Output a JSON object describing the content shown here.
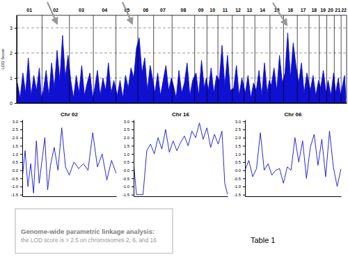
{
  "chart_data": [
    {
      "type": "area",
      "y_label": "LOD Score",
      "color": "#1010d0",
      "x": [
        1,
        5,
        9,
        13,
        17,
        21,
        25,
        29,
        33,
        36,
        39,
        43,
        47,
        51,
        55,
        59,
        63,
        67,
        71,
        75,
        79,
        83,
        87,
        91,
        95,
        99,
        103,
        107,
        111,
        114,
        118,
        122,
        126,
        130,
        134,
        138,
        142,
        147,
        151,
        155,
        159,
        163,
        167,
        171,
        175,
        179,
        183,
        187,
        191,
        195,
        199,
        202,
        206,
        210,
        214,
        218,
        222,
        226,
        229,
        233,
        237,
        241,
        245,
        249,
        253,
        257,
        262,
        266,
        270,
        274,
        277,
        280,
        284,
        288,
        292,
        296,
        300,
        304,
        308,
        312,
        317,
        321,
        325,
        329,
        334,
        338,
        342,
        346,
        350,
        354,
        358,
        362,
        366,
        369,
        372,
        376,
        380,
        384,
        388,
        392,
        396,
        400,
        404,
        408,
        412,
        416,
        420,
        424,
        429,
        433,
        437,
        441,
        444,
        448,
        452,
        455,
        459,
        463,
        466,
        470,
        473,
        476,
        479,
        481
      ],
      "values": [
        0.8,
        0.2,
        1.2,
        0.4,
        1.8,
        0.3,
        1.1,
        0.5,
        1.4,
        0.2,
        0.5,
        1.3,
        0.3,
        1.6,
        0.6,
        2.1,
        0.9,
        2.7,
        1.0,
        1.9,
        0.9,
        0.2,
        1.1,
        0.4,
        1.5,
        0.3,
        0.8,
        1.2,
        0.2,
        0.6,
        1.3,
        0.3,
        1.0,
        0.5,
        1.6,
        0.4,
        0.9,
        0.3,
        0.9,
        0.2,
        1.1,
        0.6,
        1.4,
        1.0,
        2.2,
        2.6,
        1.2,
        1.8,
        0.5,
        1.5,
        0.9,
        0.4,
        1.2,
        0.3,
        0.9,
        1.5,
        0.5,
        1.0,
        0.7,
        0.2,
        1.3,
        0.4,
        0.8,
        1.6,
        0.3,
        0.9,
        1.2,
        0.3,
        1.7,
        0.6,
        1.0,
        0.5,
        1.4,
        0.4,
        1.1,
        0.9,
        2.3,
        0.7,
        1.9,
        0.5,
        0.6,
        1.5,
        0.3,
        1.0,
        0.4,
        1.1,
        0.2,
        0.8,
        0.5,
        1.3,
        0.3,
        1.6,
        0.4,
        0.9,
        0.7,
        1.4,
        0.5,
        1.9,
        0.8,
        1.2,
        2.8,
        1.0,
        2.4,
        1.5,
        0.8,
        1.6,
        0.4,
        1.2,
        0.5,
        1.1,
        0.3,
        0.9,
        0.6,
        1.3,
        0.4,
        0.9,
        0.3,
        1.2,
        0.4,
        1.0,
        0.3,
        0.7,
        1.1,
        0.2
      ],
      "xlim": [
        0,
        482
      ],
      "ylim": [
        0,
        3.5
      ],
      "yticks": [
        0,
        1,
        2,
        3
      ],
      "grid": true,
      "tick_labels": "y",
      "chromosomes": [
        {
          "label": "01",
          "start": 0,
          "end": 37
        },
        {
          "label": "02",
          "start": 37,
          "end": 77
        },
        {
          "label": "03",
          "start": 77,
          "end": 112
        },
        {
          "label": "04",
          "start": 112,
          "end": 145
        },
        {
          "label": "05",
          "start": 145,
          "end": 177
        },
        {
          "label": "06",
          "start": 177,
          "end": 200
        },
        {
          "label": "07",
          "start": 200,
          "end": 227
        },
        {
          "label": "08",
          "start": 227,
          "end": 260
        },
        {
          "label": "09",
          "start": 260,
          "end": 278
        },
        {
          "label": "10",
          "start": 278,
          "end": 294
        },
        {
          "label": "11",
          "start": 294,
          "end": 315
        },
        {
          "label": "12",
          "start": 315,
          "end": 332
        },
        {
          "label": "13",
          "start": 332,
          "end": 348
        },
        {
          "label": "14",
          "start": 348,
          "end": 370
        },
        {
          "label": "15",
          "start": 370,
          "end": 390
        },
        {
          "label": "16",
          "start": 390,
          "end": 410
        },
        {
          "label": "17",
          "start": 410,
          "end": 427
        },
        {
          "label": "18",
          "start": 427,
          "end": 442
        },
        {
          "label": "19",
          "start": 442,
          "end": 453
        },
        {
          "label": "20",
          "start": 453,
          "end": 464
        },
        {
          "label": "21",
          "start": 464,
          "end": 474
        },
        {
          "label": "22",
          "start": 474,
          "end": 482
        }
      ]
    },
    {
      "type": "line",
      "title": "Chr 02",
      "color": "#1010d0",
      "x": [
        0,
        3,
        6,
        9,
        12,
        15,
        18,
        21,
        24,
        27,
        30,
        34,
        38,
        42,
        46,
        50,
        55,
        60,
        65,
        70,
        75,
        80,
        85,
        90,
        95,
        100
      ],
      "values": [
        -0.5,
        1.2,
        -1.0,
        0.4,
        -1.4,
        1.8,
        -0.8,
        0.6,
        2.0,
        -1.2,
        0.3,
        1.4,
        0.0,
        2.6,
        0.2,
        -0.3,
        0.5,
        0.1,
        0.4,
        0.0,
        2.3,
        0.2,
        1.0,
        -0.6,
        0.6,
        -0.2
      ],
      "xlim": [
        0,
        100
      ],
      "ylim": [
        -1.6,
        3.1
      ],
      "tick_labels": "y",
      "yticks": [
        {
          "value": -1.5,
          "label": "-1.5"
        },
        {
          "value": -1,
          "label": "-1.0"
        },
        {
          "value": -0.5,
          "label": "-0.5"
        },
        {
          "value": 0,
          "label": "0.0"
        },
        {
          "value": 0.5,
          "label": "0.5"
        },
        {
          "value": 1,
          "label": "1.0"
        },
        {
          "value": 1.5,
          "label": "1.5"
        },
        {
          "value": 2,
          "label": "2.0"
        },
        {
          "value": 2.5,
          "label": "2.5"
        },
        {
          "value": 3,
          "label": "3.0"
        }
      ]
    },
    {
      "type": "line",
      "title": "Chr 16",
      "color": "#1010d0",
      "x": [
        0,
        3,
        6,
        10,
        14,
        18,
        22,
        26,
        30,
        34,
        38,
        42,
        46,
        50,
        54,
        58,
        62,
        66,
        70,
        74,
        78,
        82,
        86,
        90,
        94,
        97,
        100
      ],
      "values": [
        0.5,
        -1.5,
        -1.5,
        -1.5,
        1.2,
        1.6,
        1.0,
        2.0,
        1.3,
        2.5,
        1.1,
        1.8,
        1.2,
        1.7,
        2.1,
        1.5,
        2.4,
        2.0,
        2.9,
        1.9,
        2.6,
        1.4,
        2.2,
        1.6,
        2.4,
        -0.8,
        -1.5
      ],
      "xlim": [
        0,
        100
      ],
      "ylim": [
        -1.6,
        3.1
      ],
      "tick_labels": "y",
      "yticks": [
        {
          "value": -1.5,
          "label": "-1.5"
        },
        {
          "value": -1,
          "label": "-1.0"
        },
        {
          "value": -0.5,
          "label": "-0.5"
        },
        {
          "value": 0,
          "label": "0.0"
        },
        {
          "value": 0.5,
          "label": "0.5"
        },
        {
          "value": 1,
          "label": "1.0"
        },
        {
          "value": 1.5,
          "label": "1.5"
        },
        {
          "value": 2,
          "label": "2.0"
        },
        {
          "value": 2.5,
          "label": "2.5"
        },
        {
          "value": 3,
          "label": "3.0"
        }
      ]
    },
    {
      "type": "line",
      "title": "Chr 06",
      "color": "#1010d0",
      "x": [
        0,
        4,
        8,
        12,
        16,
        20,
        24,
        28,
        32,
        36,
        40,
        44,
        48,
        52,
        56,
        60,
        64,
        68,
        72,
        76,
        80,
        84,
        88,
        92,
        96,
        100
      ],
      "values": [
        0.0,
        0.6,
        -0.4,
        0.1,
        2.3,
        0.0,
        0.4,
        -0.3,
        0.0,
        0.1,
        -0.8,
        0.2,
        0.0,
        2.0,
        0.5,
        1.8,
        -0.5,
        1.4,
        2.2,
        0.3,
        1.9,
        -0.4,
        2.4,
        0.2,
        -1.0,
        0.1
      ],
      "xlim": [
        0,
        100
      ],
      "ylim": [
        -1.6,
        3.1
      ],
      "tick_labels": "y",
      "yticks": [
        {
          "value": -1.5,
          "label": "-1.5"
        },
        {
          "value": -1,
          "label": "-1.0"
        },
        {
          "value": -0.5,
          "label": "-0.5"
        },
        {
          "value": 0,
          "label": "0.0"
        },
        {
          "value": 0.5,
          "label": "0.5"
        },
        {
          "value": 1,
          "label": "1.0"
        },
        {
          "value": 1.5,
          "label": "1.5"
        },
        {
          "value": 2,
          "label": "2.0"
        },
        {
          "value": 2.5,
          "label": "2.5"
        },
        {
          "value": 3,
          "label": "3.0"
        }
      ]
    }
  ],
  "caption": {
    "title": "Genome-wide parametric linkage analysis:",
    "text": "the LOD score is > 2.5 on chromosomes 2, 6, and 16"
  },
  "label": "Table 1"
}
